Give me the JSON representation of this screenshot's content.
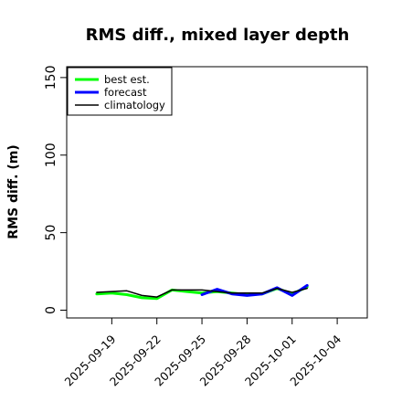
{
  "chart_data": {
    "type": "line",
    "title": "RMS diff., mixed layer depth",
    "xlabel": "",
    "ylabel": "RMS diff. (m)",
    "xlim": [
      "2025-09-16",
      "2025-10-06"
    ],
    "ylim": [
      -5,
      157
    ],
    "yticks": [
      0,
      50,
      100,
      150
    ],
    "xticks": [
      "2025-09-19",
      "2025-09-22",
      "2025-09-25",
      "2025-09-28",
      "2025-10-01",
      "2025-10-04"
    ],
    "highlighted_tick": "2025-09-25",
    "highlight_color": "#228B22",
    "grid": false,
    "legend_position": "top-left",
    "series": [
      {
        "name": "best est.",
        "color": "#00ff00",
        "line_width": 3,
        "x": [
          "2025-09-18",
          "2025-09-19",
          "2025-09-20",
          "2025-09-21",
          "2025-09-22",
          "2025-09-23",
          "2025-09-24",
          "2025-09-25",
          "2025-09-26",
          "2025-09-27",
          "2025-09-28",
          "2025-09-29",
          "2025-09-30",
          "2025-10-01",
          "2025-10-02"
        ],
        "y": [
          10.5,
          11,
          10,
          8,
          7.5,
          13,
          12,
          11,
          12,
          11,
          10,
          10.5,
          14,
          10.5,
          15
        ]
      },
      {
        "name": "forecast",
        "color": "#0000ff",
        "line_width": 3,
        "x": [
          "2025-09-25",
          "2025-09-26",
          "2025-09-27",
          "2025-09-28",
          "2025-09-29",
          "2025-09-30",
          "2025-10-01",
          "2025-10-02"
        ],
        "y": [
          10,
          13.5,
          10.5,
          9.5,
          10.5,
          14.5,
          9.5,
          16
        ]
      },
      {
        "name": "climatology",
        "color": "#000000",
        "line_width": 1.5,
        "x": [
          "2025-09-18",
          "2025-09-19",
          "2025-09-20",
          "2025-09-21",
          "2025-09-22",
          "2025-09-23",
          "2025-09-24",
          "2025-09-25",
          "2025-09-26",
          "2025-09-27",
          "2025-09-28",
          "2025-09-29",
          "2025-09-30",
          "2025-10-01",
          "2025-10-02"
        ],
        "y": [
          11.5,
          12,
          12.5,
          9.5,
          8.5,
          13,
          13,
          13,
          12,
          11,
          11,
          11,
          14,
          11.5,
          14
        ]
      }
    ]
  }
}
